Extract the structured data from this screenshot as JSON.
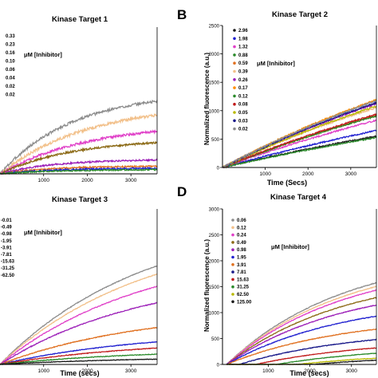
{
  "figure": {
    "panel_letters": {
      "b": "B",
      "d": "D"
    },
    "legend_title": "μM [Inhibitor]"
  },
  "chart_data": [
    {
      "type": "line",
      "title": "Kinase Target 1",
      "xlabel": "",
      "ylabel": "",
      "x_ticks": [
        1000,
        2000,
        3000
      ],
      "xlim": [
        0,
        3600
      ],
      "ylim": [
        0,
        1500
      ],
      "legend_title": "μM [Inhibitor]",
      "series": [
        {
          "name": "0.33",
          "color": "#8c8c8c",
          "plateau": 840,
          "k": 0.0006,
          "noise": 14
        },
        {
          "name": "0.23",
          "color": "#f2c08a",
          "plateau": 720,
          "k": 0.0005,
          "noise": 14
        },
        {
          "name": "0.16",
          "color": "#e040c8",
          "plateau": 520,
          "k": 0.0005,
          "noise": 12
        },
        {
          "name": "0.10",
          "color": "#8b6914",
          "plateau": 360,
          "k": 0.0006,
          "noise": 10
        },
        {
          "name": "0.06",
          "color": "#9c1fb8",
          "plateau": 150,
          "k": 0.0008,
          "noise": 8
        },
        {
          "name": "0.04",
          "color": "#e07020",
          "plateau": 80,
          "k": 0.0009,
          "noise": 8
        },
        {
          "name": "0.02",
          "color": "#2020d0",
          "plateau": 60,
          "k": 0.0008,
          "noise": 8
        },
        {
          "name": "0.02",
          "color": "#2a8a2a",
          "plateau": 45,
          "k": 0.0008,
          "noise": 7
        }
      ]
    },
    {
      "type": "line",
      "title": "Kinase Target 2",
      "xlabel": "Time (Secs)",
      "ylabel": "Normalized fluorescence (a.u.)",
      "x_ticks": [
        1000,
        2000,
        3000
      ],
      "y_ticks": [
        0,
        500,
        1000,
        1500,
        2000,
        2500
      ],
      "xlim": [
        0,
        3600
      ],
      "ylim": [
        0,
        2500
      ],
      "legend_title": "μM [Inhibitor]",
      "series": [
        {
          "name": "2.96",
          "color": "#1a1a1a",
          "plateau": 2200,
          "k": 8e-05,
          "noise": 12
        },
        {
          "name": "1.98",
          "color": "#2020d0",
          "plateau": 2600,
          "k": 8e-05,
          "noise": 12
        },
        {
          "name": "1.32",
          "color": "#e040c8",
          "plateau": 3000,
          "k": 9e-05,
          "noise": 12
        },
        {
          "name": "0.88",
          "color": "#2a8a2a",
          "plateau": 2100,
          "k": 8e-05,
          "noise": 10
        },
        {
          "name": "0.59",
          "color": "#e07020",
          "plateau": 3300,
          "k": 9e-05,
          "noise": 12
        },
        {
          "name": "0.39",
          "color": "#f2c08a",
          "plateau": 3000,
          "k": 0.00012,
          "noise": 12
        },
        {
          "name": "0.26",
          "color": "#9c1fb8",
          "plateau": 3200,
          "k": 0.00012,
          "noise": 12
        },
        {
          "name": "0.17",
          "color": "#ff8c00",
          "plateau": 3400,
          "k": 0.00012,
          "noise": 12
        },
        {
          "name": "0.12",
          "color": "#2a8a2a",
          "plateau": 3000,
          "k": 0.0001,
          "noise": 12
        },
        {
          "name": "0.08",
          "color": "#c01a1a",
          "plateau": 3100,
          "k": 0.0001,
          "noise": 12
        },
        {
          "name": "0.05",
          "color": "#b8b800",
          "plateau": 3300,
          "k": 0.00011,
          "noise": 12
        },
        {
          "name": "0.03",
          "color": "#1a1a8a",
          "plateau": 3500,
          "k": 0.00011,
          "noise": 12
        },
        {
          "name": "0.02",
          "color": "#8c8c8c",
          "plateau": 3600,
          "k": 0.00011,
          "noise": 12
        }
      ]
    },
    {
      "type": "line",
      "title": "Kinase Target 3",
      "xlabel": "Time (secs)",
      "ylabel": "",
      "x_ticks": [
        1000,
        2000,
        3000
      ],
      "xlim": [
        0,
        3600
      ],
      "ylim": [
        0,
        2500
      ],
      "legend_title": "μM [Inhibitor]",
      "series": [
        {
          "name": "0.01",
          "color": "#8c8c8c",
          "plateau": 2400,
          "k": 0.0003,
          "noise": 6
        },
        {
          "name": "0.49",
          "color": "#f2c08a",
          "plateau": 2200,
          "k": 0.0003,
          "noise": 6
        },
        {
          "name": "0.98",
          "color": "#e040c8",
          "plateau": 1900,
          "k": 0.0003,
          "noise": 6
        },
        {
          "name": "1.95",
          "color": "#9c1fb8",
          "plateau": 1500,
          "k": 0.0003,
          "noise": 6
        },
        {
          "name": "3.91",
          "color": "#e07020",
          "plateau": 900,
          "k": 0.0003,
          "noise": 6
        },
        {
          "name": "7.81",
          "color": "#2020d0",
          "plateau": 550,
          "k": 0.0003,
          "noise": 5
        },
        {
          "name": "15.63",
          "color": "#c01a1a",
          "plateau": 400,
          "k": 0.0003,
          "noise": 5
        },
        {
          "name": "31.25",
          "color": "#2a8a2a",
          "plateau": 250,
          "k": 0.0003,
          "noise": 5
        },
        {
          "name": "62.50",
          "color": "#1a1a1a",
          "plateau": 130,
          "k": 0.0003,
          "noise": 4
        }
      ]
    },
    {
      "type": "line",
      "title": "Kinase Target 4",
      "xlabel": "Time (secs)",
      "ylabel": "Normalized fluorescence (a.u.)",
      "x_ticks": [
        1000,
        2000,
        3000
      ],
      "y_ticks": [
        0,
        500,
        1000,
        1500,
        2000,
        2500,
        3000
      ],
      "xlim": [
        -100,
        3600
      ],
      "ylim": [
        0,
        3000
      ],
      "legend_title": "μM [Inhibitor]",
      "series": [
        {
          "name": "0.06",
          "color": "#8c8c8c",
          "plateau": 2200,
          "k": 0.00035,
          "noise": 6,
          "lag": 0
        },
        {
          "name": "0.12",
          "color": "#f2c08a",
          "plateau": 2100,
          "k": 0.00035,
          "noise": 6,
          "lag": 0
        },
        {
          "name": "0.24",
          "color": "#e040c8",
          "plateau": 2000,
          "k": 0.00035,
          "noise": 6,
          "lag": 0
        },
        {
          "name": "0.49",
          "color": "#8b6914",
          "plateau": 1800,
          "k": 0.00035,
          "noise": 6,
          "lag": 0
        },
        {
          "name": "0.98",
          "color": "#9c1fb8",
          "plateau": 1600,
          "k": 0.00035,
          "noise": 6,
          "lag": 0
        },
        {
          "name": "1.95",
          "color": "#2020d0",
          "plateau": 1300,
          "k": 0.00035,
          "noise": 6,
          "lag": 0
        },
        {
          "name": "3.91",
          "color": "#e07020",
          "plateau": 950,
          "k": 0.00035,
          "noise": 6,
          "lag": 0
        },
        {
          "name": "7.81",
          "color": "#1a1a8a",
          "plateau": 700,
          "k": 0.00035,
          "noise": 6,
          "lag": 300
        },
        {
          "name": "15.63",
          "color": "#c01a1a",
          "plateau": 500,
          "k": 0.00035,
          "noise": 5,
          "lag": 700
        },
        {
          "name": "31.25",
          "color": "#2a8a2a",
          "plateau": 380,
          "k": 0.00035,
          "noise": 5,
          "lag": 1200
        },
        {
          "name": "62.50",
          "color": "#b8b800",
          "plateau": 250,
          "k": 0.00035,
          "noise": 5,
          "lag": 1700
        },
        {
          "name": "125.00",
          "color": "#1a1a1a",
          "plateau": 200,
          "k": 0.00035,
          "noise": 5,
          "lag": 2100
        }
      ]
    }
  ]
}
